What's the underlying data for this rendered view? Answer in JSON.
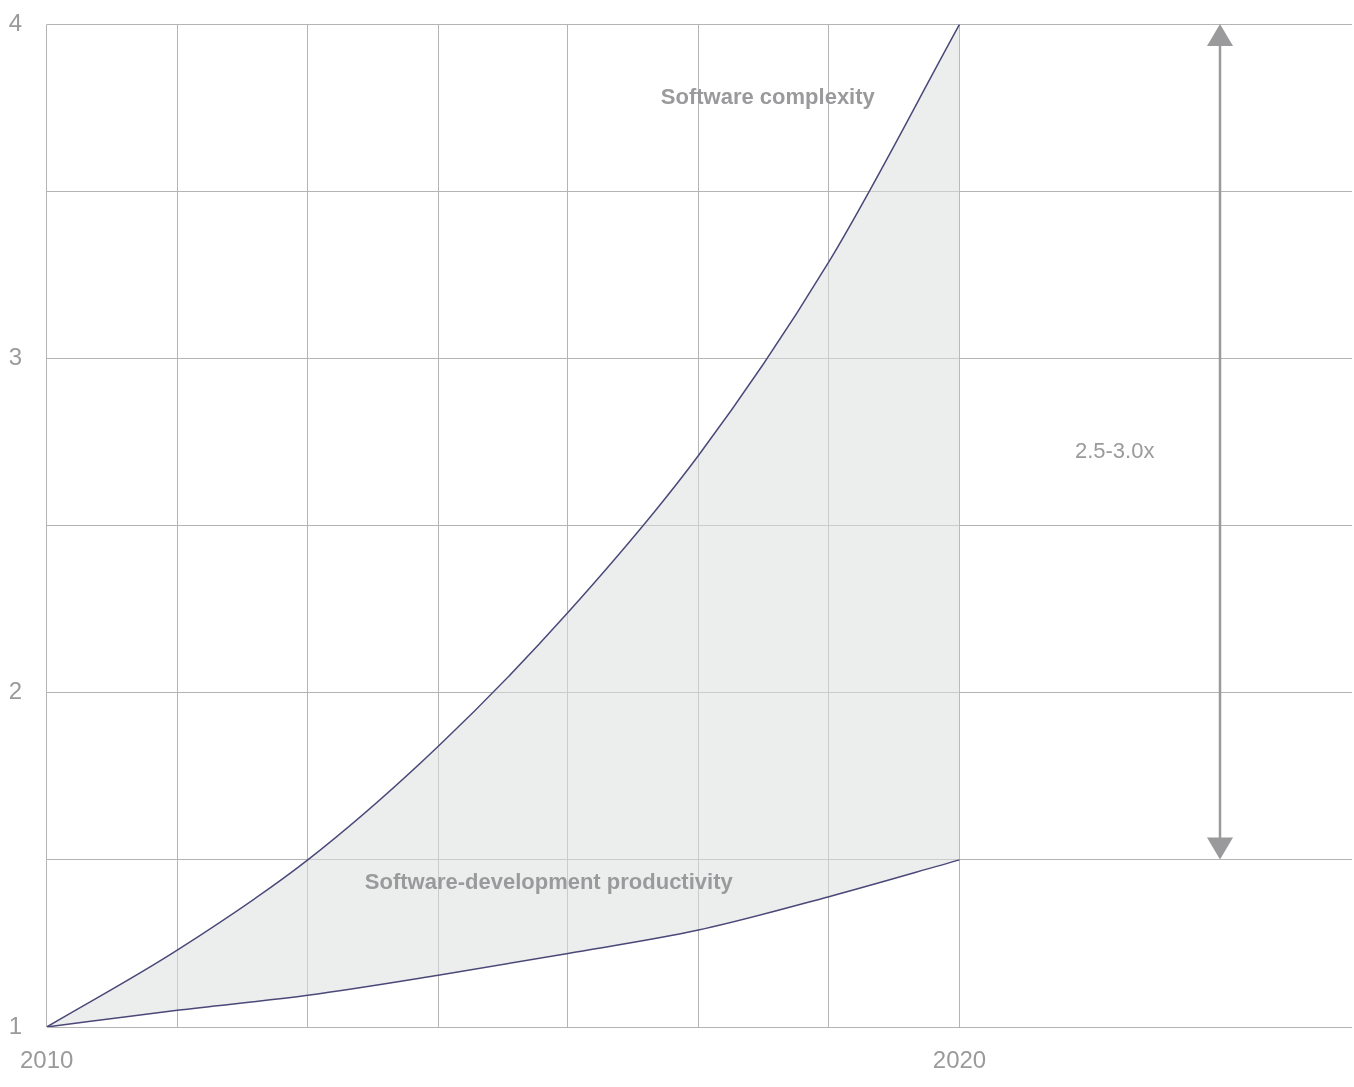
{
  "chart_data": {
    "type": "line",
    "x": [
      2010,
      2011.43,
      2012.86,
      2014.29,
      2015.71,
      2017.14,
      2018.57,
      2020
    ],
    "series": [
      {
        "name": "Software complexity",
        "color": "#4a4878",
        "values": [
          1,
          1.23,
          1.5,
          1.84,
          2.24,
          2.71,
          3.29,
          4
        ]
      },
      {
        "name": "Software-development productivity",
        "color": "#4a4878",
        "values": [
          1,
          1.05,
          1.095,
          1.155,
          1.22,
          1.29,
          1.39,
          1.5
        ]
      }
    ],
    "xlim": [
      2010,
      2024.3
    ],
    "xticks": [
      2010,
      {
        "value": 2011.43,
        "label": null
      },
      {
        "value": 2012.86,
        "label": null
      },
      {
        "value": 2014.29,
        "label": null
      },
      {
        "value": 2015.71,
        "label": null
      },
      {
        "value": 2017.14,
        "label": null
      },
      {
        "value": 2018.57,
        "label": null
      },
      2020
    ],
    "ylim": [
      1,
      4
    ],
    "yticks": [
      1,
      {
        "value": 1.5,
        "label": null
      },
      2,
      {
        "value": 2.5,
        "label": null
      },
      3,
      {
        "value": 3.5,
        "label": null
      },
      4
    ],
    "grid": true,
    "legend": false,
    "marker": "none",
    "line_style": "solid",
    "annotations": [
      "2.5-3.0x"
    ]
  }
}
